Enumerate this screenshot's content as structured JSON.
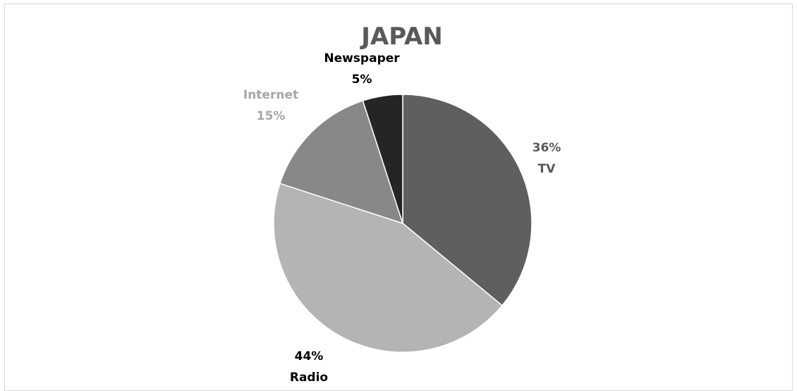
{
  "chart_data": {
    "type": "pie",
    "title": "JAPAN",
    "slices": [
      {
        "name": "TV",
        "value": 36,
        "label_pct": "36%",
        "color": "#5f5f5f",
        "label_color": "#595959"
      },
      {
        "name": "Radio",
        "value": 44,
        "label_pct": "44%",
        "color": "#b4b4b4",
        "label_color": "#000000"
      },
      {
        "name": "Internet",
        "value": 15,
        "label_pct": "15%",
        "color": "#888888",
        "label_color": "#a6a6a6"
      },
      {
        "name": "Newspaper",
        "value": 5,
        "label_pct": "5%",
        "color": "#252525",
        "label_color": "#000000"
      }
    ],
    "title_color": "#595959",
    "start_angle": "12 o'clock",
    "direction": "clockwise",
    "legend": "none"
  }
}
